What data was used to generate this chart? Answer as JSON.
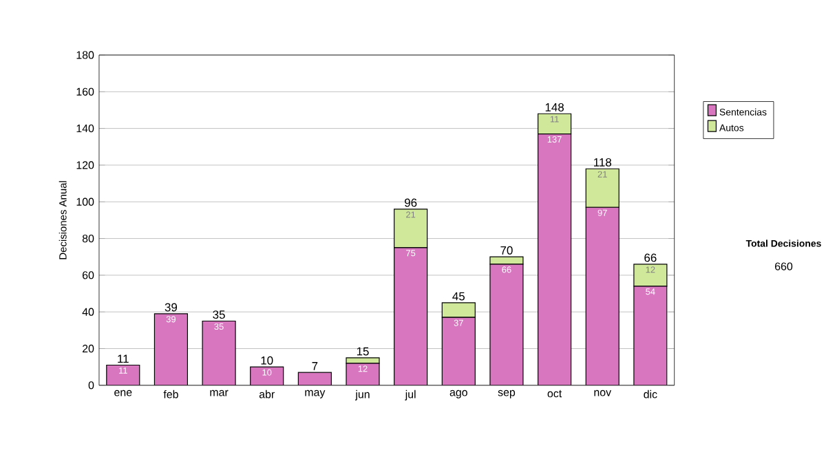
{
  "chart_data": {
    "type": "bar",
    "stacked": true,
    "ylabel": "Decisiones Anual",
    "categories": [
      "ene",
      "feb",
      "mar",
      "abr",
      "may",
      "jun",
      "jul",
      "ago",
      "sep",
      "oct",
      "nov",
      "dic"
    ],
    "series": [
      {
        "name": "Sentencias",
        "color": "#d877c0",
        "values": [
          11,
          39,
          35,
          10,
          7,
          12,
          75,
          37,
          66,
          137,
          97,
          54
        ],
        "value_labels": [
          "11",
          "39",
          "35",
          "10",
          null,
          "12",
          "75",
          "37",
          "66",
          "137",
          "97",
          "54"
        ]
      },
      {
        "name": "Autos",
        "color": "#d0e89a",
        "values": [
          0,
          0,
          0,
          0,
          0,
          3,
          21,
          8,
          4,
          11,
          21,
          12
        ],
        "value_labels": [
          null,
          null,
          null,
          null,
          null,
          null,
          "21",
          null,
          null,
          "11",
          "21",
          "12"
        ]
      }
    ],
    "totals": [
      "11",
      "39",
      "35",
      "10",
      "7",
      "15",
      "96",
      "45",
      "70",
      "148",
      "118",
      "66"
    ],
    "ylim": [
      0,
      180
    ],
    "yticks": [
      0,
      20,
      40,
      60,
      80,
      100,
      120,
      140,
      160,
      180
    ],
    "grid": "y",
    "legend": "right",
    "annotations": [
      "Total Decisiones",
      "660"
    ]
  }
}
